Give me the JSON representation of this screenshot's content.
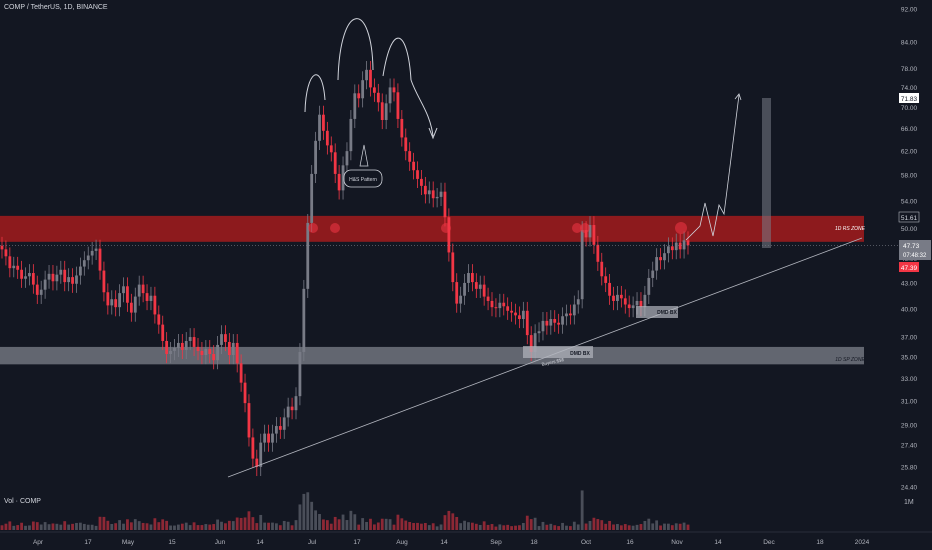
{
  "header": {
    "symbol_line": "COMP / TetherUS, 1D, BINANCE"
  },
  "volume": {
    "label": "Vol · COMP",
    "scale_label": "1M"
  },
  "colors": {
    "background": "#131722",
    "up": "#787b86",
    "down": "#f23645",
    "resistance_zone": "#b71c1c",
    "support_zone": "#b2b5be",
    "text": "#b2b5be"
  },
  "annotations": {
    "pattern": "H&S Pattern",
    "resistance_zone": "1D RS ZONE",
    "support_zone": "1D SP ZONE",
    "dmd_box_upper": "DMD BX",
    "dmd_box_lower": "DMD BX",
    "sweep": "Buyers $$$"
  },
  "price_badges": {
    "target": "71.83",
    "zone_top": "51.61",
    "current": "47.73",
    "countdown": "07:48:32",
    "low": "47.39"
  },
  "chart_data": {
    "type": "candlestick",
    "title": "COMP / TetherUS, 1D, BINANCE",
    "y_scale": "log",
    "ylim": [
      24.4,
      92.0
    ],
    "y_ticks": [
      "92.00",
      "84.00",
      "78.00",
      "74.00",
      "70.00",
      "66.00",
      "62.00",
      "58.00",
      "54.00",
      "50.00",
      "46.00",
      "43.00",
      "40.00",
      "37.00",
      "35.00",
      "33.00",
      "31.00",
      "29.00",
      "27.40",
      "25.80",
      "24.40"
    ],
    "x_ticks": [
      "Apr",
      "17",
      "May",
      "15",
      "Jun",
      "14",
      "Jul",
      "17",
      "Aug",
      "14",
      "Sep",
      "18",
      "Oct",
      "16",
      "Nov",
      "14",
      "Dec",
      "18",
      "2024"
    ],
    "zones": [
      {
        "name": "1D RS ZONE",
        "low": 48.2,
        "high": 51.8
      },
      {
        "name": "1D SP ZONE",
        "low": 34.3,
        "high": 36.0
      }
    ],
    "close_series": [
      47.2,
      46.3,
      44.8,
      45.1,
      44.6,
      43.5,
      43.8,
      44.2,
      42.8,
      41.6,
      42.2,
      43.4,
      44.1,
      43.2,
      44.0,
      44.6,
      43.1,
      43.7,
      42.9,
      43.9,
      45.0,
      45.8,
      46.4,
      47.0,
      47.3,
      44.5,
      41.9,
      40.4,
      41.1,
      40.2,
      41.8,
      42.6,
      40.7,
      39.6,
      41.4,
      42.8,
      41.8,
      40.9,
      41.5,
      39.4,
      38.3,
      36.6,
      35.3,
      35.6,
      35.9,
      36.4,
      35.7,
      36.6,
      37.0,
      36.0,
      35.6,
      35.2,
      35.8,
      35.3,
      34.7,
      36.2,
      37.3,
      36.5,
      35.2,
      36.4,
      34.4,
      32.6,
      30.8,
      28.0,
      26.4,
      25.8,
      27.6,
      28.3,
      27.6,
      28.3,
      28.9,
      28.6,
      29.6,
      30.5,
      30.2,
      31.4,
      35.5,
      42.3,
      50.8,
      58.2,
      63.8,
      68.6,
      65.6,
      63.0,
      61.8,
      58.2,
      55.6,
      59.6,
      62.0,
      67.8,
      72.8,
      71.8,
      75.5,
      77.7,
      74.0,
      72.9,
      71.0,
      67.6,
      70.8,
      74.0,
      73.0,
      67.8,
      64.4,
      62.0,
      60.2,
      58.8,
      57.4,
      56.3,
      55.0,
      55.6,
      54.4,
      54.6,
      55.4,
      51.6,
      46.8,
      43.1,
      40.6,
      41.5,
      43.0,
      44.2,
      43.1,
      42.3,
      42.8,
      41.4,
      40.9,
      40.2,
      40.1,
      40.7,
      40.3,
      39.8,
      39.6,
      39.3,
      38.9,
      39.8,
      37.2,
      35.5,
      37.4,
      37.6,
      38.7,
      38.2,
      38.9,
      38.5,
      38.3,
      39.2,
      39.5,
      39.3,
      40.5,
      41.1,
      49.8,
      48.8,
      50.5,
      47.8,
      45.6,
      43.8,
      43.0,
      41.5,
      40.9,
      41.6,
      41.2,
      40.5,
      40.1,
      40.4,
      40.9,
      40.2,
      41.6,
      43.6,
      44.5,
      46.2,
      45.8,
      46.7,
      47.6,
      47.1,
      48.1,
      47.2,
      48.4,
      47.73
    ]
  }
}
